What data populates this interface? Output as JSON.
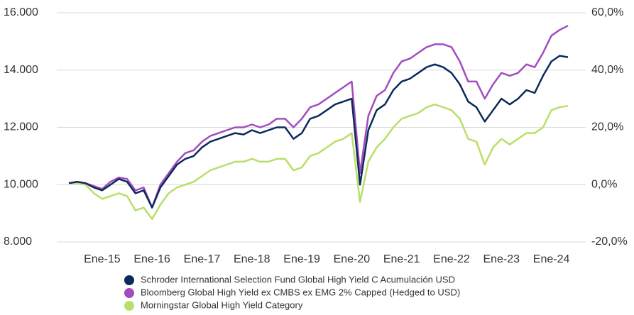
{
  "chart_data": {
    "type": "line",
    "categories": [
      null,
      null,
      null,
      null,
      "Ene-15",
      null,
      null,
      null,
      null,
      null,
      "Ene-16",
      null,
      null,
      null,
      null,
      null,
      "Ene-17",
      null,
      null,
      null,
      null,
      null,
      "Ene-18",
      null,
      null,
      null,
      null,
      null,
      "Ene-19",
      null,
      null,
      null,
      null,
      null,
      "Ene-20",
      null,
      null,
      null,
      null,
      null,
      "Ene-21",
      null,
      null,
      null,
      null,
      null,
      "Ene-22",
      null,
      null,
      null,
      null,
      null,
      "Ene-23",
      null,
      null,
      null,
      null,
      null,
      "Ene-24",
      null,
      null
    ],
    "series": [
      {
        "name": "Schroder International Selection Fund Global High Yield C Acumulación USD",
        "color": "#0b2a5b",
        "values": [
          10050,
          10100,
          10050,
          9900,
          9800,
          10000,
          10200,
          10100,
          9700,
          9800,
          9200,
          9900,
          10300,
          10700,
          10900,
          11000,
          11300,
          11500,
          11600,
          11700,
          11800,
          11750,
          11900,
          11800,
          11900,
          12000,
          12000,
          11600,
          11800,
          12300,
          12400,
          12600,
          12800,
          12900,
          13000,
          10000,
          11900,
          12600,
          12800,
          13300,
          13600,
          13700,
          13900,
          14100,
          14200,
          14100,
          13900,
          13500,
          12900,
          12700,
          12200,
          12600,
          13000,
          12800,
          13000,
          13300,
          13200,
          13800,
          14300,
          14500,
          14450
        ]
      },
      {
        "name": "Bloomberg Global High Yield ex CMBS ex EMG 2% Capped (Hedged to USD)",
        "color": "#a24cbf",
        "values": [
          10050,
          10100,
          10050,
          9950,
          9850,
          10100,
          10250,
          10200,
          9800,
          9900,
          9200,
          10000,
          10400,
          10800,
          11100,
          11200,
          11500,
          11700,
          11800,
          11900,
          12000,
          12000,
          12100,
          12000,
          12100,
          12300,
          12300,
          12000,
          12300,
          12700,
          12800,
          13000,
          13200,
          13400,
          13600,
          10400,
          12400,
          13100,
          13300,
          13900,
          14300,
          14400,
          14600,
          14800,
          14900,
          14900,
          14800,
          14300,
          13600,
          13600,
          13000,
          13500,
          13900,
          13800,
          13900,
          14200,
          14100,
          14600,
          15200,
          15400,
          15550
        ]
      },
      {
        "name": "Morningstar Global High Yield Category",
        "color": "#b8df6a",
        "values": [
          10050,
          10050,
          10000,
          9700,
          9500,
          9600,
          9700,
          9600,
          9100,
          9200,
          8800,
          9300,
          9700,
          9900,
          10000,
          10100,
          10300,
          10500,
          10600,
          10700,
          10800,
          10800,
          10900,
          10800,
          10800,
          10900,
          10900,
          10500,
          10600,
          11000,
          11100,
          11300,
          11500,
          11600,
          11800,
          9400,
          10800,
          11300,
          11600,
          12000,
          12300,
          12400,
          12500,
          12700,
          12800,
          12700,
          12600,
          12300,
          11600,
          11500,
          10700,
          11300,
          11600,
          11400,
          11600,
          11800,
          11800,
          12000,
          12600,
          12700,
          12750
        ]
      }
    ],
    "ylim": [
      8000,
      16000
    ],
    "yticks": [
      {
        "value": 8000,
        "label": "8.000"
      },
      {
        "value": 10000,
        "label": "10.000"
      },
      {
        "value": 12000,
        "label": "12.000"
      },
      {
        "value": 14000,
        "label": "14.000"
      },
      {
        "value": 16000,
        "label": "16.000"
      }
    ],
    "y2lim": [
      -20,
      60
    ],
    "y2ticks": [
      {
        "value": -20,
        "label": "-20,0%"
      },
      {
        "value": 0,
        "label": "0,0%"
      },
      {
        "value": 20,
        "label": "20,0%"
      },
      {
        "value": 40,
        "label": "40,0%"
      },
      {
        "value": 60,
        "label": "60,0%"
      }
    ],
    "grid": true
  }
}
